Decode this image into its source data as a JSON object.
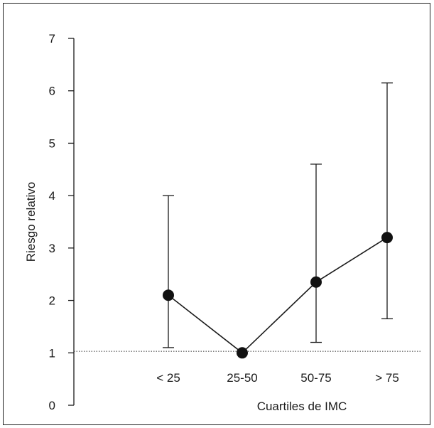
{
  "chart_data": {
    "type": "line",
    "xlabel": "Cuartiles de IMC",
    "ylabel": "Riesgo relativo",
    "categories": [
      "< 25",
      "25-50",
      "50-75",
      "> 75"
    ],
    "series": [
      {
        "values": [
          2.1,
          1.0,
          2.35,
          3.2
        ],
        "ci_low": [
          1.1,
          1.0,
          1.2,
          1.65
        ],
        "ci_high": [
          4.0,
          1.0,
          4.6,
          6.15
        ]
      }
    ],
    "reference_line": {
      "y": 1.03,
      "style": "dotted"
    },
    "ylim": [
      0,
      7
    ],
    "yticks": [
      0,
      1,
      2,
      3,
      4,
      5,
      6,
      7
    ],
    "grid": false,
    "colors": {
      "line": "#1a1a1a",
      "marker": "#111111",
      "reference": "#333333"
    }
  }
}
